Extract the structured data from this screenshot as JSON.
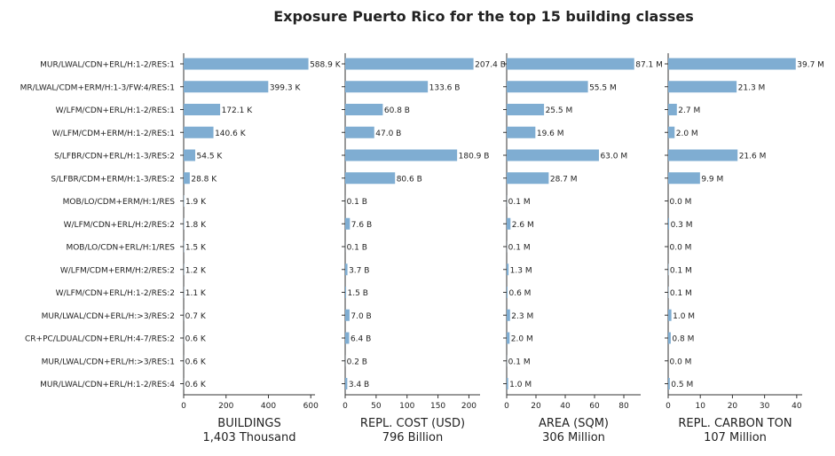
{
  "chart_data": {
    "type": "bar",
    "title": "Exposure Puerto Rico for the top 15 building classes",
    "categories": [
      "MUR/LWAL/CDN+ERL/H:1-2/RES:1",
      "MR/LWAL/CDM+ERM/H:1-3/FW:4/RES:1",
      "W/LFM/CDN+ERL/H:1-2/RES:1",
      "W/LFM/CDM+ERM/H:1-2/RES:1",
      "S/LFBR/CDN+ERL/H:1-3/RES:2",
      "S/LFBR/CDM+ERM/H:1-3/RES:2",
      "MOB/LO/CDM+ERM/H:1/RES",
      "W/LFM/CDN+ERL/H:2/RES:2",
      "MOB/LO/CDN+ERL/H:1/RES",
      "W/LFM/CDM+ERM/H:2/RES:2",
      "W/LFM/CDN+ERL/H:1-2/RES:2",
      "MUR/LWAL/CDN+ERL/H:>3/RES:2",
      "CR+PC/LDUAL/CDN+ERL/H:4-7/RES:2",
      "MUR/LWAL/CDN+ERL/H:>3/RES:1",
      "MUR/LWAL/CDN+ERL/H:1-2/RES:4"
    ],
    "bar_color": "#7fadd2",
    "panels": [
      {
        "xlabel": "BUILDINGS",
        "total": "1,403 Thousand",
        "xlim": [
          0,
          620
        ],
        "ticks": [
          "0",
          "200",
          "400",
          "600"
        ],
        "tick_values": [
          0,
          200,
          400,
          600
        ],
        "values": [
          588.9,
          399.3,
          172.1,
          140.6,
          54.5,
          28.8,
          1.9,
          1.8,
          1.5,
          1.2,
          1.1,
          0.7,
          0.6,
          0.6,
          0.6
        ],
        "labels": [
          "588.9 K",
          "399.3 K",
          "172.1 K",
          "140.6 K",
          "54.5 K",
          "28.8 K",
          "1.9 K",
          "1.8 K",
          "1.5 K",
          "1.2 K",
          "1.1 K",
          "0.7 K",
          "0.6 K",
          "0.6 K",
          "0.6 K"
        ]
      },
      {
        "xlabel": "REPL. COST (USD)",
        "total": "796 Billion",
        "xlim": [
          0,
          218
        ],
        "ticks": [
          "0",
          "50",
          "100",
          "150",
          "200"
        ],
        "tick_values": [
          0,
          50,
          100,
          150,
          200
        ],
        "values": [
          207.4,
          133.6,
          60.8,
          47.0,
          180.9,
          80.6,
          0.1,
          7.6,
          0.1,
          3.7,
          1.5,
          7.0,
          6.4,
          0.2,
          3.4
        ],
        "labels": [
          "207.4 B",
          "133.6 B",
          "60.8 B",
          "47.0 B",
          "180.9 B",
          "80.6 B",
          "0.1 B",
          "7.6 B",
          "0.1 B",
          "3.7 B",
          "1.5 B",
          "7.0 B",
          "6.4 B",
          "0.2 B",
          "3.4 B"
        ]
      },
      {
        "xlabel": "AREA (SQM)",
        "total": "306 Million",
        "xlim": [
          0,
          91.5
        ],
        "ticks": [
          "0",
          "20",
          "40",
          "60",
          "80"
        ],
        "tick_values": [
          0,
          20,
          40,
          60,
          80
        ],
        "values": [
          87.1,
          55.5,
          25.5,
          19.6,
          63.0,
          28.7,
          0.1,
          2.6,
          0.1,
          1.3,
          0.6,
          2.3,
          2.0,
          0.1,
          1.0
        ],
        "labels": [
          "87.1 M",
          "55.5 M",
          "25.5 M",
          "19.6 M",
          "63.0 M",
          "28.7 M",
          "0.1 M",
          "2.6 M",
          "0.1 M",
          "1.3 M",
          "0.6 M",
          "2.3 M",
          "2.0 M",
          "0.1 M",
          "1.0 M"
        ]
      },
      {
        "xlabel": "REPL. CARBON TON",
        "total": "107 Million",
        "xlim": [
          0,
          41.7
        ],
        "ticks": [
          "0",
          "10",
          "20",
          "30",
          "40"
        ],
        "tick_values": [
          0,
          10,
          20,
          30,
          40
        ],
        "values": [
          39.7,
          21.3,
          2.7,
          2.0,
          21.6,
          9.9,
          0.0,
          0.3,
          0.0,
          0.1,
          0.1,
          1.0,
          0.8,
          0.0,
          0.5
        ],
        "labels": [
          "39.7 M",
          "21.3 M",
          "2.7 M",
          "2.0 M",
          "21.6 M",
          "9.9 M",
          "0.0 M",
          "0.3 M",
          "0.0 M",
          "0.1 M",
          "0.1 M",
          "1.0 M",
          "0.8 M",
          "0.0 M",
          "0.5 M"
        ]
      }
    ]
  }
}
